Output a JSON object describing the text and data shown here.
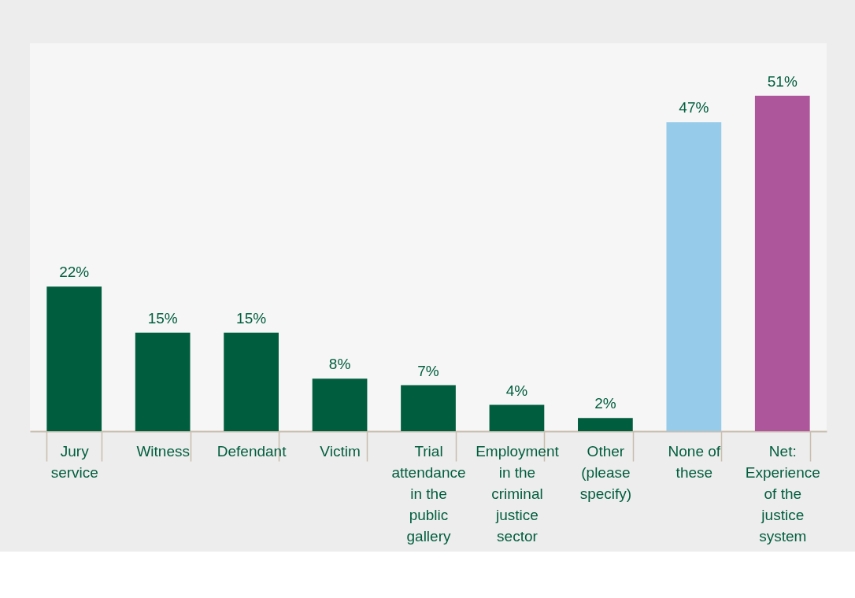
{
  "chart_data": {
    "type": "bar",
    "categories": [
      "Jury service",
      "Witness",
      "Defendant",
      "Victim",
      "Trial attendance in the public gallery",
      "Employment in the criminal justice sector",
      "Other (please specify)",
      "None of these",
      "Net: Experience of the justice system"
    ],
    "values": [
      22,
      15,
      15,
      8,
      7,
      4,
      2,
      47,
      51
    ],
    "value_labels": [
      "22%",
      "15%",
      "15%",
      "8%",
      "7%",
      "4%",
      "2%",
      "47%",
      "51%"
    ],
    "colors": [
      "#005e3f",
      "#005e3f",
      "#005e3f",
      "#005e3f",
      "#005e3f",
      "#005e3f",
      "#005e3f",
      "#97cbea",
      "#ad569c"
    ],
    "ylim": [
      0,
      59
    ],
    "tick_labels": "x",
    "grid": false
  }
}
